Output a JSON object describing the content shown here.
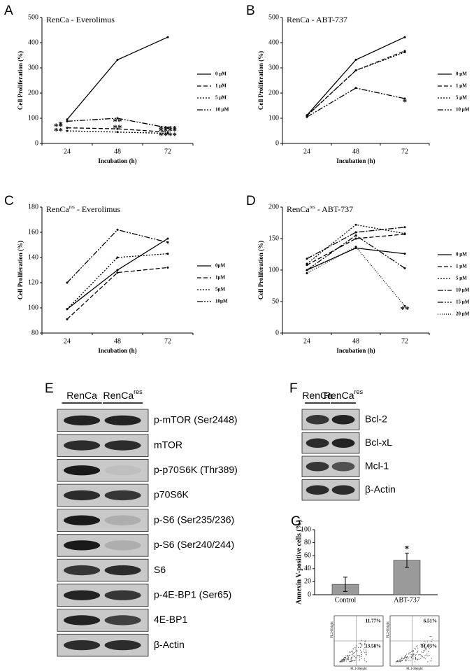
{
  "panel_letters": [
    "A",
    "B",
    "C",
    "D",
    "E",
    "F",
    "G"
  ],
  "chart_data": [
    {
      "type": "line",
      "title_parts": [
        "RenCa - Everolimus"
      ],
      "x_label": "Incubation (h)",
      "y_label": "Cell Proliferation (%)",
      "categories": [
        "24",
        "48",
        "72"
      ],
      "ylim": [
        0,
        500
      ],
      "yticks": [
        0,
        100,
        200,
        300,
        400,
        500
      ],
      "series": [
        {
          "name": "0 μM",
          "color": "#000000",
          "dash": "none",
          "values": [
            95,
            332,
            422
          ],
          "significance": [
            null,
            null,
            null
          ]
        },
        {
          "name": "1 μM",
          "color": "#000000",
          "dash": "6,3",
          "values": [
            62,
            58,
            45
          ],
          "significance": [
            "**",
            null,
            "****"
          ]
        },
        {
          "name": "5 μM",
          "color": "#000000",
          "dash": "2,2",
          "values": [
            50,
            45,
            40
          ],
          "significance": [
            "**",
            "**",
            "****"
          ]
        },
        {
          "name": "10 μM",
          "color": "#000000",
          "dash": "8,2,2,2,2,2",
          "values": [
            88,
            100,
            62
          ],
          "significance": [
            "*",
            "**",
            "****"
          ]
        }
      ]
    },
    {
      "type": "line",
      "title_parts": [
        "RenCa - ABT-737"
      ],
      "x_label": "Incubation (h)",
      "y_label": "Cell Proliferation (%)",
      "categories": [
        "24",
        "48",
        "72"
      ],
      "ylim": [
        0,
        500
      ],
      "yticks": [
        0,
        100,
        200,
        300,
        400,
        500
      ],
      "series": [
        {
          "name": "0 μM",
          "color": "#000000",
          "dash": "none",
          "values": [
            112,
            332,
            422
          ],
          "significance": [
            null,
            null,
            null
          ]
        },
        {
          "name": "1 μM",
          "color": "#000000",
          "dash": "6,3",
          "values": [
            110,
            290,
            367
          ],
          "significance": [
            null,
            null,
            null
          ]
        },
        {
          "name": "5 μM",
          "color": "#000000",
          "dash": "2,2",
          "values": [
            110,
            290,
            362
          ],
          "significance": [
            null,
            null,
            null
          ]
        },
        {
          "name": "10 μM",
          "color": "#000000",
          "dash": "8,2,2,2,2,2",
          "values": [
            105,
            220,
            178
          ],
          "significance": [
            null,
            null,
            "*"
          ]
        }
      ]
    },
    {
      "type": "line",
      "title_parts": [
        "RenCa",
        "res",
        " - Everolimus"
      ],
      "x_label": "Incubation (h)",
      "y_label": "Cell Proliferation (%)",
      "categories": [
        "24",
        "48",
        "72"
      ],
      "ylim": [
        80,
        180
      ],
      "yticks": [
        80,
        100,
        120,
        140,
        160,
        180
      ],
      "series": [
        {
          "name": "0μM",
          "color": "#000000",
          "dash": "none",
          "values": [
            99,
            130,
            155
          ],
          "significance": [
            null,
            null,
            null
          ]
        },
        {
          "name": "1μM",
          "color": "#000000",
          "dash": "6,3",
          "values": [
            91,
            128,
            132
          ],
          "significance": [
            null,
            null,
            null
          ]
        },
        {
          "name": "5μM",
          "color": "#000000",
          "dash": "2,2",
          "values": [
            99,
            140,
            143
          ],
          "significance": [
            null,
            null,
            null
          ]
        },
        {
          "name": "10μM",
          "color": "#000000",
          "dash": "8,2,2,2,2,2",
          "values": [
            120,
            162,
            152
          ],
          "significance": [
            null,
            null,
            null
          ]
        }
      ]
    },
    {
      "type": "line",
      "title_parts": [
        "RenCa",
        "res",
        " - ABT-737"
      ],
      "x_label": "Incubation (h)",
      "y_label": "Cell Proliferation (%)",
      "categories": [
        "24",
        "48",
        "72"
      ],
      "ylim": [
        0,
        200
      ],
      "yticks": [
        0,
        50,
        100,
        150,
        200
      ],
      "series": [
        {
          "name": "0 μM",
          "color": "#000000",
          "dash": "none",
          "values": [
            100,
            135,
            126
          ],
          "significance": [
            null,
            null,
            null
          ]
        },
        {
          "name": "1 μM",
          "color": "#000000",
          "dash": "6,3",
          "values": [
            108,
            150,
            157
          ],
          "significance": [
            null,
            null,
            null
          ]
        },
        {
          "name": "5 μM",
          "color": "#000000",
          "dash": "2,2",
          "values": [
            110,
            172,
            158
          ],
          "significance": [
            null,
            null,
            null
          ]
        },
        {
          "name": "10 μM",
          "color": "#000000",
          "dash": "8,2,2,2",
          "values": [
            118,
            160,
            168
          ],
          "significance": [
            null,
            null,
            null
          ]
        },
        {
          "name": "15 μM",
          "color": "#000000",
          "dash": "8,2,2,2,2,2",
          "values": [
            100,
            155,
            103
          ],
          "significance": [
            null,
            null,
            null
          ]
        },
        {
          "name": "20 μM",
          "color": "#000000",
          "dash": "1,2",
          "values": [
            95,
            137,
            43
          ],
          "significance": [
            null,
            null,
            "**"
          ]
        }
      ]
    },
    {
      "type": "bar",
      "y_label": "Annexin V-positive cells (%)",
      "categories": [
        "Control",
        "ABT-737"
      ],
      "values": [
        16,
        53
      ],
      "errors": [
        11,
        11
      ],
      "significance": [
        null,
        "*"
      ],
      "color": "#9a9a9a",
      "ylim": [
        0,
        100
      ],
      "yticks": [
        0,
        20,
        40,
        60,
        80,
        100
      ]
    }
  ],
  "blots_e": {
    "headers": [
      [
        "RenCa"
      ],
      [
        "RenCa",
        "res"
      ]
    ],
    "labels": [
      "p-mTOR (Ser2448)",
      "mTOR",
      "p-p70S6K (Thr389)",
      "p70S6K",
      "p-S6 (Ser235/236)",
      "p-S6 (Ser240/244)",
      "S6",
      "p-4E-BP1 (Ser65)",
      "4E-BP1",
      "β-Actin"
    ]
  },
  "blots_f": {
    "headers": [
      [
        "RenCa"
      ],
      [
        "RenCa",
        "res"
      ]
    ],
    "labels": [
      "Bcl-2",
      "Bcl-xL",
      "Mcl-1",
      "β-Actin"
    ]
  },
  "flow": [
    {
      "upper_right": "11.77%",
      "lower_right": "13.58%",
      "x_label": "FL1-Height",
      "y_label": "FL2-Height"
    },
    {
      "upper_right": "6.51%",
      "lower_right": "51.03%",
      "x_label": "FL1-Height",
      "y_label": "FL2-Height"
    }
  ]
}
